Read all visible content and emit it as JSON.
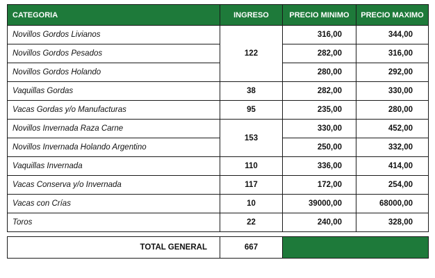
{
  "header": {
    "categoria": "CATEGORIA",
    "ingreso": "INGRESO",
    "precio_minimo": "PRECIO MINIMO",
    "precio_maximo": "PRECIO MAXIMO"
  },
  "rows": [
    {
      "categoria": "Novillos Gordos Livianos",
      "ingreso": "122",
      "min": "316,00",
      "max": "344,00"
    },
    {
      "categoria": "Novillos Gordos Pesados",
      "min": "282,00",
      "max": "316,00"
    },
    {
      "categoria": "Novillos Gordos Holando",
      "min": "280,00",
      "max": "292,00"
    },
    {
      "categoria": "Vaquillas Gordas",
      "ingreso": "38",
      "min": "282,00",
      "max": "330,00"
    },
    {
      "categoria": "Vacas Gordas y/o Manufacturas",
      "ingreso": "95",
      "min": "235,00",
      "max": "280,00"
    },
    {
      "categoria": "Novillos Invernada Raza Carne",
      "ingreso": "153",
      "min": "330,00",
      "max": "452,00"
    },
    {
      "categoria": "Novillos Invernada Holando Argentino",
      "min": "250,00",
      "max": "332,00"
    },
    {
      "categoria": "Vaquillas Invernada",
      "ingreso": "110",
      "min": "336,00",
      "max": "414,00"
    },
    {
      "categoria": "Vacas Conserva y/o Invernada",
      "ingreso": "117",
      "min": "172,00",
      "max": "254,00"
    },
    {
      "categoria": "Vacas con Crías",
      "ingreso": "10",
      "min": "39000,00",
      "max": "68000,00"
    },
    {
      "categoria": "Toros",
      "ingreso": "22",
      "min": "240,00",
      "max": "328,00"
    }
  ],
  "total": {
    "label": "TOTAL GENERAL",
    "ingreso": "667"
  },
  "colors": {
    "header_green": "#1e7a3a"
  }
}
